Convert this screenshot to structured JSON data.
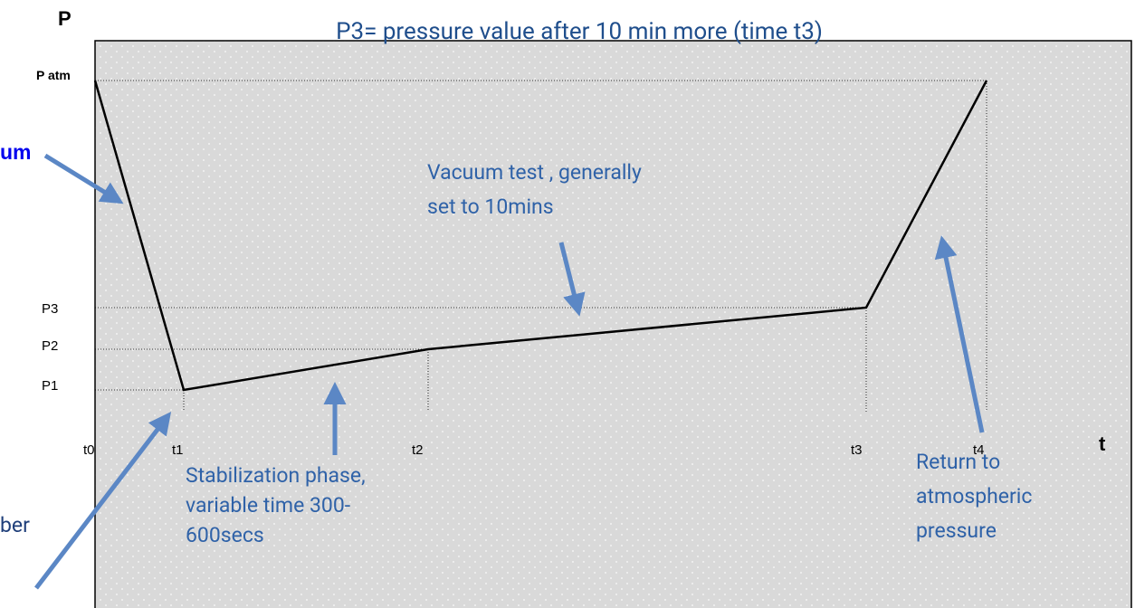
{
  "title": "P3= pressure value after 10 min more (time t3)",
  "axis": {
    "y_label": "P",
    "x_label": "t",
    "levels": [
      "P atm",
      "P3",
      "P2",
      "P1"
    ],
    "times": [
      "t0",
      "t1",
      "t2",
      "t3",
      "t4"
    ]
  },
  "callouts": [
    {
      "lines": [
        "um"
      ]
    },
    {
      "lines": [
        "Vacuum test , generally",
        "set to 10mins"
      ]
    },
    {
      "lines": [
        "Stabilization phase,",
        "variable time 300-",
        "600secs"
      ]
    },
    {
      "lines": [
        "Return to",
        "atmospheric",
        "pressure"
      ]
    },
    {
      "lines": [
        "ber"
      ]
    }
  ]
}
